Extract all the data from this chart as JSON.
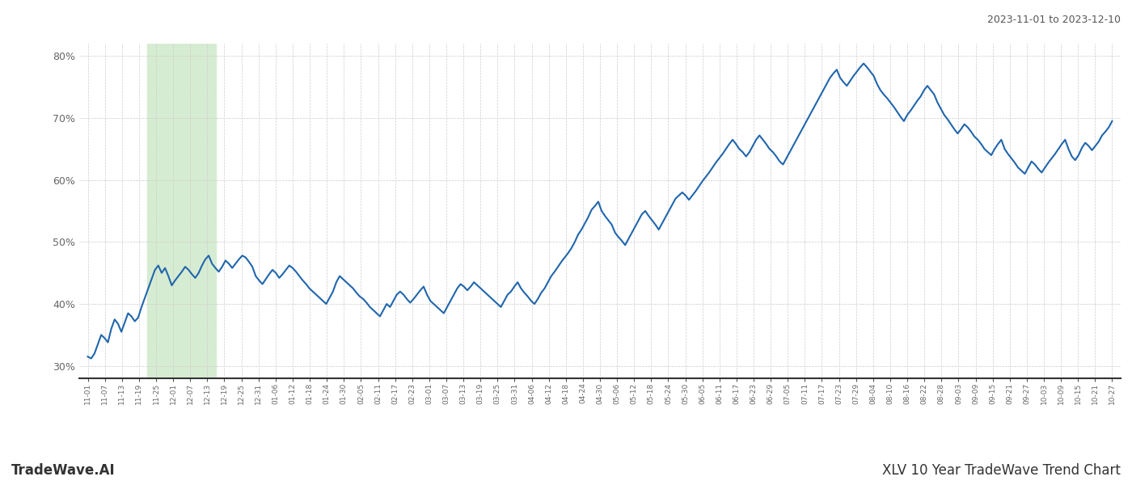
{
  "title_right": "2023-11-01 to 2023-12-10",
  "footer_left": "TradeWave.AI",
  "footer_right": "XLV 10 Year TradeWave Trend Chart",
  "x_labels": [
    "11-01",
    "11-07",
    "11-13",
    "11-19",
    "11-25",
    "12-01",
    "12-07",
    "12-13",
    "12-19",
    "12-25",
    "12-31",
    "01-06",
    "01-12",
    "01-18",
    "01-24",
    "01-30",
    "02-05",
    "02-11",
    "02-17",
    "02-23",
    "03-01",
    "03-07",
    "03-13",
    "03-19",
    "03-25",
    "03-31",
    "04-06",
    "04-12",
    "04-18",
    "04-24",
    "04-30",
    "05-06",
    "05-12",
    "05-18",
    "05-24",
    "05-30",
    "06-05",
    "06-11",
    "06-17",
    "06-23",
    "06-29",
    "07-05",
    "07-11",
    "07-17",
    "07-23",
    "07-29",
    "08-04",
    "08-10",
    "08-16",
    "08-22",
    "08-28",
    "09-03",
    "09-09",
    "09-15",
    "09-21",
    "09-27",
    "10-03",
    "10-09",
    "10-15",
    "10-21",
    "10-27"
  ],
  "highlight_start_label": "11-25",
  "highlight_end_label": "12-13",
  "highlight_color": "#d6ecd2",
  "line_color": "#2166ac",
  "line_width": 1.5,
  "ylim": [
    28,
    82
  ],
  "yticks": [
    30,
    40,
    50,
    60,
    70,
    80
  ],
  "background_color": "#ffffff",
  "grid_color": "#cccccc",
  "values": [
    31.5,
    31.2,
    32.0,
    33.5,
    35.0,
    34.5,
    33.8,
    36.0,
    37.5,
    36.8,
    35.5,
    37.0,
    38.5,
    38.0,
    37.2,
    37.8,
    39.5,
    41.0,
    42.5,
    44.0,
    45.5,
    46.2,
    45.0,
    45.8,
    44.5,
    43.0,
    43.8,
    44.5,
    45.2,
    46.0,
    45.5,
    44.8,
    44.2,
    45.0,
    46.2,
    47.2,
    47.8,
    46.5,
    45.8,
    45.2,
    46.0,
    47.0,
    46.5,
    45.8,
    46.5,
    47.2,
    47.8,
    47.5,
    46.8,
    46.0,
    44.5,
    43.8,
    43.2,
    44.0,
    44.8,
    45.5,
    45.0,
    44.2,
    44.8,
    45.5,
    46.2,
    45.8,
    45.2,
    44.5,
    43.8,
    43.2,
    42.5,
    42.0,
    41.5,
    41.0,
    40.5,
    40.0,
    41.0,
    42.0,
    43.5,
    44.5,
    44.0,
    43.5,
    43.0,
    42.5,
    41.8,
    41.2,
    40.8,
    40.2,
    39.5,
    39.0,
    38.5,
    38.0,
    39.0,
    40.0,
    39.5,
    40.5,
    41.5,
    42.0,
    41.5,
    40.8,
    40.2,
    40.8,
    41.5,
    42.2,
    42.8,
    41.5,
    40.5,
    40.0,
    39.5,
    39.0,
    38.5,
    39.5,
    40.5,
    41.5,
    42.5,
    43.2,
    42.8,
    42.2,
    42.8,
    43.5,
    43.0,
    42.5,
    42.0,
    41.5,
    41.0,
    40.5,
    40.0,
    39.5,
    40.5,
    41.5,
    42.0,
    42.8,
    43.5,
    42.5,
    41.8,
    41.2,
    40.5,
    40.0,
    40.8,
    41.8,
    42.5,
    43.5,
    44.5,
    45.2,
    46.0,
    46.8,
    47.5,
    48.2,
    49.0,
    50.0,
    51.2,
    52.0,
    53.0,
    54.0,
    55.2,
    55.8,
    56.5,
    55.0,
    54.2,
    53.5,
    52.8,
    51.5,
    50.8,
    50.2,
    49.5,
    50.5,
    51.5,
    52.5,
    53.5,
    54.5,
    55.0,
    54.2,
    53.5,
    52.8,
    52.0,
    53.0,
    54.0,
    55.0,
    56.0,
    57.0,
    57.5,
    58.0,
    57.5,
    56.8,
    57.5,
    58.2,
    59.0,
    59.8,
    60.5,
    61.2,
    62.0,
    62.8,
    63.5,
    64.2,
    65.0,
    65.8,
    66.5,
    65.8,
    65.0,
    64.5,
    63.8,
    64.5,
    65.5,
    66.5,
    67.2,
    66.5,
    65.8,
    65.0,
    64.5,
    63.8,
    63.0,
    62.5,
    63.5,
    64.5,
    65.5,
    66.5,
    67.5,
    68.5,
    69.5,
    70.5,
    71.5,
    72.5,
    73.5,
    74.5,
    75.5,
    76.5,
    77.2,
    77.8,
    76.5,
    75.8,
    75.2,
    76.0,
    76.8,
    77.5,
    78.2,
    78.8,
    78.2,
    77.5,
    76.8,
    75.5,
    74.5,
    73.8,
    73.2,
    72.5,
    71.8,
    71.0,
    70.2,
    69.5,
    70.5,
    71.2,
    72.0,
    72.8,
    73.5,
    74.5,
    75.2,
    74.5,
    73.8,
    72.5,
    71.5,
    70.5,
    69.8,
    69.0,
    68.2,
    67.5,
    68.2,
    69.0,
    68.5,
    67.8,
    67.0,
    66.5,
    65.8,
    65.0,
    64.5,
    64.0,
    65.0,
    65.8,
    66.5,
    65.0,
    64.2,
    63.5,
    62.8,
    62.0,
    61.5,
    61.0,
    62.0,
    63.0,
    62.5,
    61.8,
    61.2,
    62.0,
    62.8,
    63.5,
    64.2,
    65.0,
    65.8,
    66.5,
    65.0,
    63.8,
    63.2,
    64.0,
    65.2,
    66.0,
    65.5,
    64.8,
    65.5,
    66.2,
    67.2,
    67.8,
    68.5,
    69.5
  ]
}
